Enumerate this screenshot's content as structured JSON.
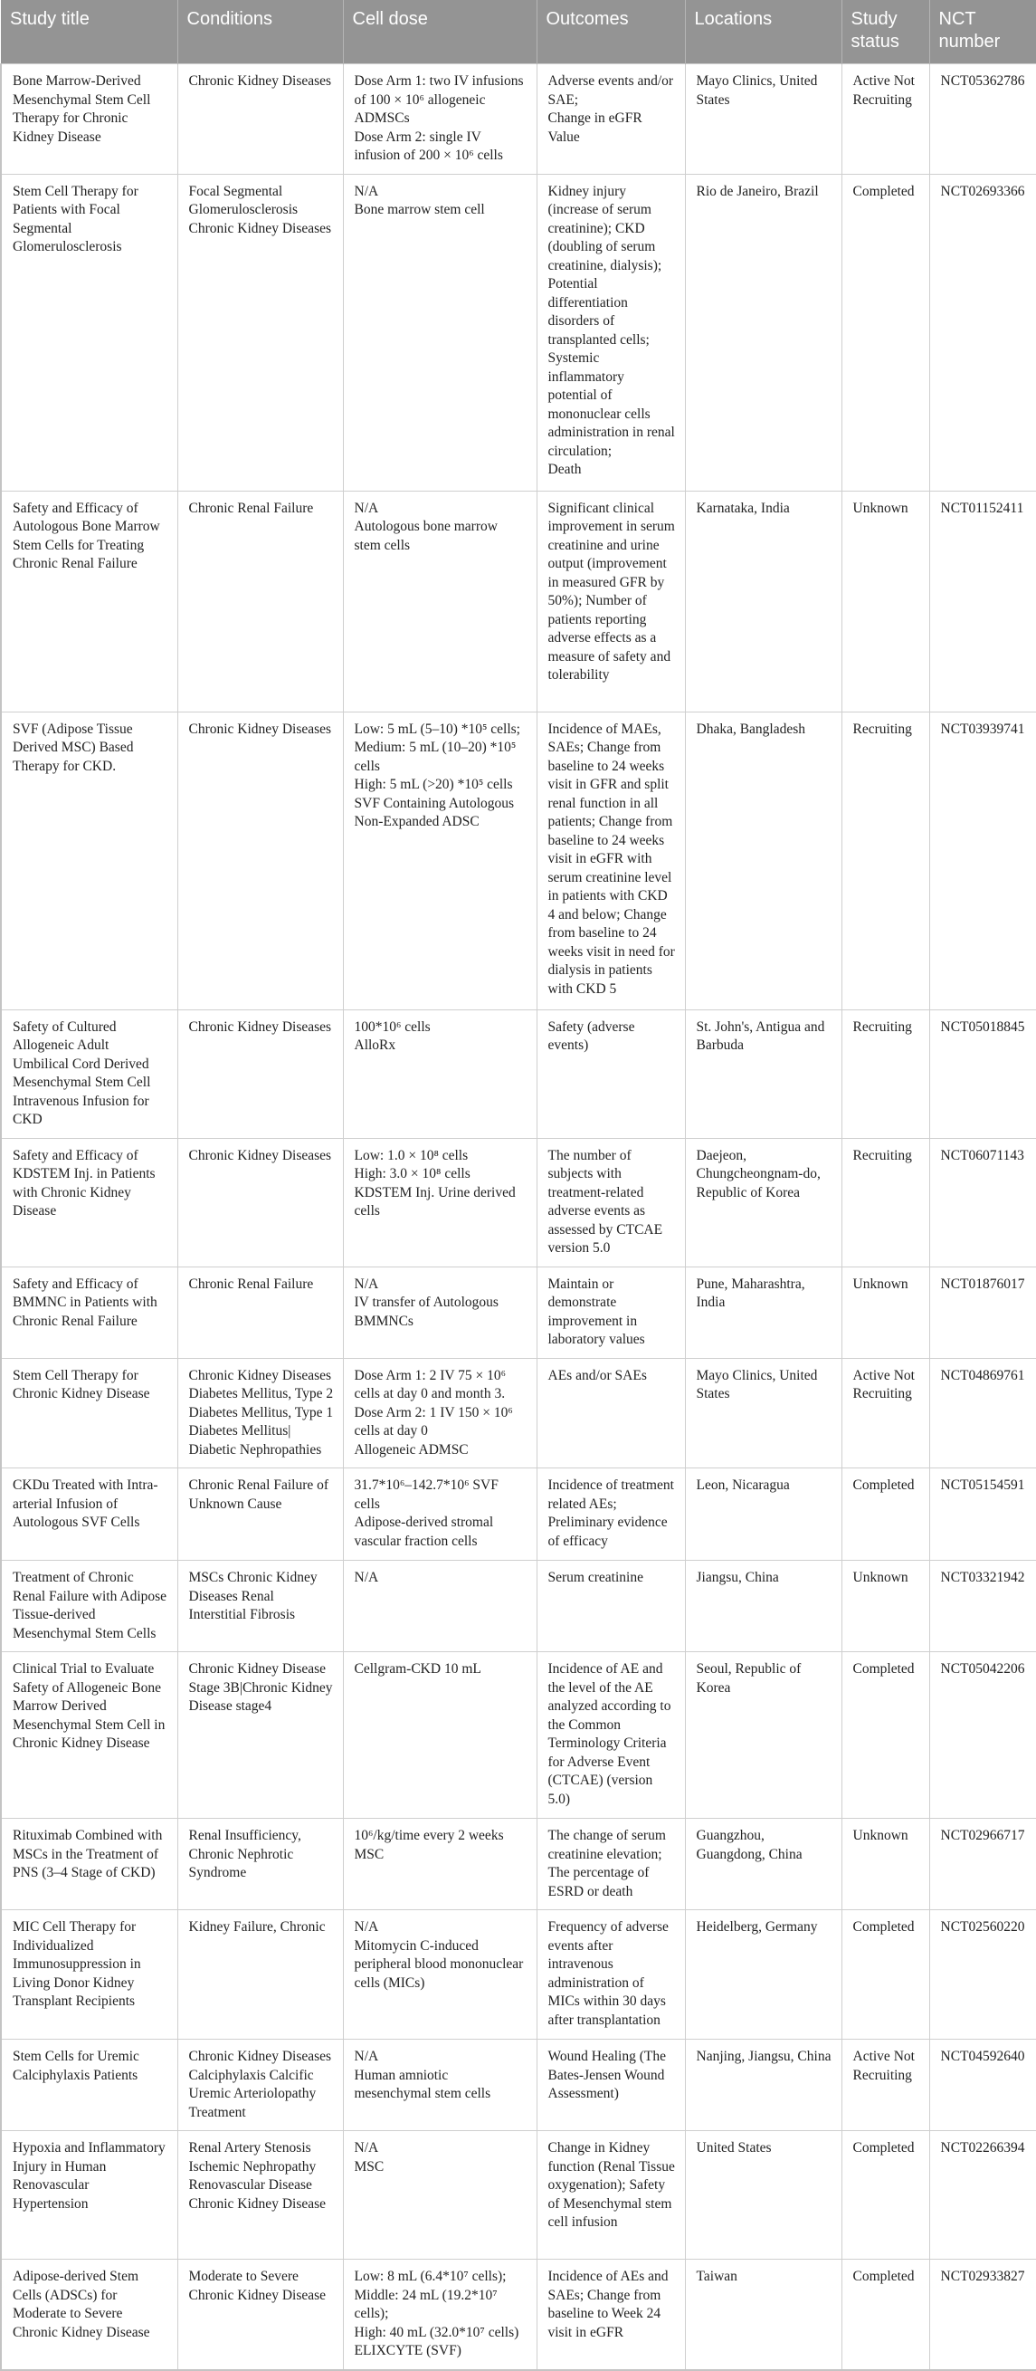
{
  "table": {
    "headers": [
      "Study title",
      "Conditions",
      "Cell dose",
      "Outcomes",
      "Locations",
      "Study status",
      "NCT number"
    ],
    "rows": [
      {
        "title": "Bone Marrow-Derived Mesenchymal Stem Cell Therapy for Chronic Kidney Disease",
        "conditions": "Chronic Kidney Diseases",
        "dose": "Dose Arm 1: two IV infusions of 100 × 10⁶ allogeneic ADMSCs\nDose Arm 2: single IV infusion of 200 × 10⁶ cells",
        "outcomes": "Adverse events and/or SAE;\nChange in eGFR Value",
        "locations": "Mayo Clinics, United States",
        "status": "Active Not Recruiting",
        "nct": "NCT05362786"
      },
      {
        "title": "Stem Cell Therapy for Patients with Focal Segmental Glomerulosclerosis",
        "conditions": "Focal Segmental Glomerulosclerosis\nChronic Kidney Diseases",
        "dose": "N/A\nBone marrow stem cell",
        "outcomes": "Kidney injury (increase of serum creatinine); CKD (doubling of serum creatinine, dialysis);\nPotential differentiation disorders of transplanted cells;\nSystemic inflammatory potential of mononuclear cells administration in renal circulation;\nDeath",
        "locations": "Rio de Janeiro, Brazil",
        "status": "Completed",
        "nct": "NCT02693366"
      },
      {
        "title": "Safety and Efficacy of Autologous Bone Marrow Stem Cells for Treating Chronic Renal Failure",
        "conditions": "Chronic Renal Failure",
        "dose": "N/A\nAutologous bone marrow stem cells",
        "outcomes": "Significant clinical improvement in serum creatinine and urine output (improvement in measured GFR by 50%); Number of patients reporting adverse effects as a measure of safety and tolerability",
        "locations": "Karnataka, India",
        "status": "Unknown",
        "nct": "NCT01152411"
      },
      {
        "title": "SVF (Adipose Tissue Derived MSC) Based Therapy for CKD.",
        "conditions": "Chronic Kidney Diseases",
        "dose": "Low: 5 mL (5–10) *10⁵ cells;\nMedium: 5 mL (10–20) *10⁵ cells\nHigh: 5 mL (>20) *10⁵ cells\nSVF Containing Autologous Non-Expanded ADSC",
        "outcomes": "Incidence of MAEs, SAEs; Change from baseline to 24 weeks visit in GFR and split renal function in all patients; Change from baseline to 24 weeks visit in eGFR with serum creatinine level in patients with CKD 4 and below; Change from baseline to 24 weeks visit in need for dialysis in patients with CKD 5",
        "locations": "Dhaka, Bangladesh",
        "status": "Recruiting",
        "nct": "NCT03939741"
      },
      {
        "title": "Safety of Cultured Allogeneic Adult Umbilical Cord Derived Mesenchymal Stem Cell Intravenous Infusion for CKD",
        "conditions": "Chronic Kidney Diseases",
        "dose": "100*10⁶ cells\nAlloRx",
        "outcomes": "Safety (adverse events)",
        "locations": "St. John's, Antigua and Barbuda",
        "status": "Recruiting",
        "nct": "NCT05018845"
      },
      {
        "title": "Safety and Efficacy of KDSTEM Inj. in Patients with Chronic Kidney Disease",
        "conditions": "Chronic Kidney Diseases",
        "dose": "Low: 1.0 × 10⁸ cells\nHigh: 3.0 × 10⁸ cells\nKDSTEM Inj. Urine derived cells",
        "outcomes": "The number of subjects with treatment-related adverse events as assessed by CTCAE version 5.0",
        "locations": "Daejeon, Chungcheongnam-do, Republic of Korea",
        "status": "Recruiting",
        "nct": "NCT06071143"
      },
      {
        "title": "Safety and Efficacy of BMMNC in Patients with Chronic Renal Failure",
        "conditions": "Chronic Renal Failure",
        "dose": "N/A\nIV transfer of Autologous BMMNCs",
        "outcomes": "Maintain or demonstrate improvement in laboratory values",
        "locations": "Pune, Maharashtra, India",
        "status": "Unknown",
        "nct": "NCT01876017"
      },
      {
        "title": "Stem Cell Therapy for Chronic Kidney Disease",
        "conditions": "Chronic Kidney Diseases Diabetes Mellitus, Type 2 Diabetes Mellitus, Type 1 Diabetes Mellitus| Diabetic Nephropathies",
        "dose": "Dose Arm 1: 2 IV 75 × 10⁶ cells at day 0 and month 3.\nDose Arm 2: 1 IV 150 × 10⁶ cells at day 0\nAllogeneic ADMSC",
        "outcomes": "AEs and/or SAEs",
        "locations": "Mayo Clinics, United States",
        "status": "Active Not Recruiting",
        "nct": "NCT04869761"
      },
      {
        "title": "CKDu Treated with Intra-arterial Infusion of Autologous SVF Cells",
        "conditions": "Chronic Renal Failure of Unknown Cause",
        "dose": "31.7*10⁶–142.7*10⁶ SVF cells\nAdipose-derived stromal vascular fraction cells",
        "outcomes": "Incidence of treatment related AEs; Preliminary evidence of efficacy",
        "locations": "Leon, Nicaragua",
        "status": "Completed",
        "nct": "NCT05154591"
      },
      {
        "title": "Treatment of Chronic Renal Failure with Adipose Tissue-derived Mesenchymal Stem Cells",
        "conditions": "MSCs Chronic Kidney Diseases Renal Interstitial Fibrosis",
        "dose": "N/A",
        "outcomes": "Serum creatinine",
        "locations": "Jiangsu, China",
        "status": "Unknown",
        "nct": "NCT03321942"
      },
      {
        "title": "Clinical Trial to Evaluate Safety of Allogeneic Bone Marrow Derived Mesenchymal Stem Cell in Chronic Kidney Disease",
        "conditions": "Chronic Kidney Disease Stage 3B|Chronic Kidney Disease stage4",
        "dose": "Cellgram-CKD 10 mL",
        "outcomes": "Incidence of AE and the level of the AE analyzed according to the Common Terminology Criteria for Adverse Event (CTCAE) (version 5.0)",
        "locations": "Seoul, Republic of Korea",
        "status": "Completed",
        "nct": "NCT05042206"
      },
      {
        "title": "Rituximab Combined with MSCs in the Treatment of PNS (3–4 Stage of CKD)",
        "conditions": "Renal Insufficiency, Chronic Nephrotic Syndrome",
        "dose": "10⁶/kg/time every 2 weeks\nMSC",
        "outcomes": "The change of serum creatinine elevation; The percentage of ESRD or death",
        "locations": "Guangzhou, Guangdong, China",
        "status": "Unknown",
        "nct": "NCT02966717"
      },
      {
        "title": "MIC Cell Therapy for Individualized Immunosuppression in Living Donor Kidney Transplant Recipients",
        "conditions": "Kidney Failure, Chronic",
        "dose": "N/A\nMitomycin C-induced peripheral blood mononuclear cells (MICs)",
        "outcomes": "Frequency of adverse events after intravenous administration of MICs within 30 days after transplantation",
        "locations": "Heidelberg, Germany",
        "status": "Completed",
        "nct": "NCT02560220"
      },
      {
        "title": "Stem Cells for Uremic Calciphylaxis Patients",
        "conditions": "Chronic Kidney Diseases Calciphylaxis Calcific Uremic Arteriolopathy Treatment",
        "dose": "N/A\nHuman amniotic mesenchymal stem cells",
        "outcomes": "Wound Healing (The Bates-Jensen Wound Assessment)",
        "locations": "Nanjing, Jiangsu, China",
        "status": "Active Not Recruiting",
        "nct": "NCT04592640"
      },
      {
        "title": "Hypoxia and Inflammatory Injury in Human Renovascular Hypertension",
        "conditions": "Renal Artery Stenosis Ischemic Nephropathy Renovascular Disease Chronic Kidney Disease",
        "dose": "N/A\nMSC",
        "outcomes": "Change in Kidney function (Renal Tissue oxygenation); Safety of Mesenchymal stem cell infusion",
        "locations": "United States",
        "status": "Completed",
        "nct": "NCT02266394"
      },
      {
        "title": "Adipose-derived Stem Cells (ADSCs) for Moderate to Severe Chronic Kidney Disease",
        "conditions": "Moderate to Severe Chronic Kidney Disease",
        "dose": "Low: 8 mL (6.4*10⁷ cells);\nMiddle: 24 mL (19.2*10⁷ cells);\nHigh: 40 mL (32.0*10⁷ cells)\nELIXCYTE (SVF)",
        "outcomes": "Incidence of AEs and SAEs; Change from baseline to Week 24 visit in eGFR",
        "locations": "Taiwan",
        "status": "Completed",
        "nct": "NCT02933827"
      }
    ]
  },
  "colors": {
    "header_bg": "#949494",
    "header_text": "#ffffff",
    "border": "#cfcfcf"
  }
}
